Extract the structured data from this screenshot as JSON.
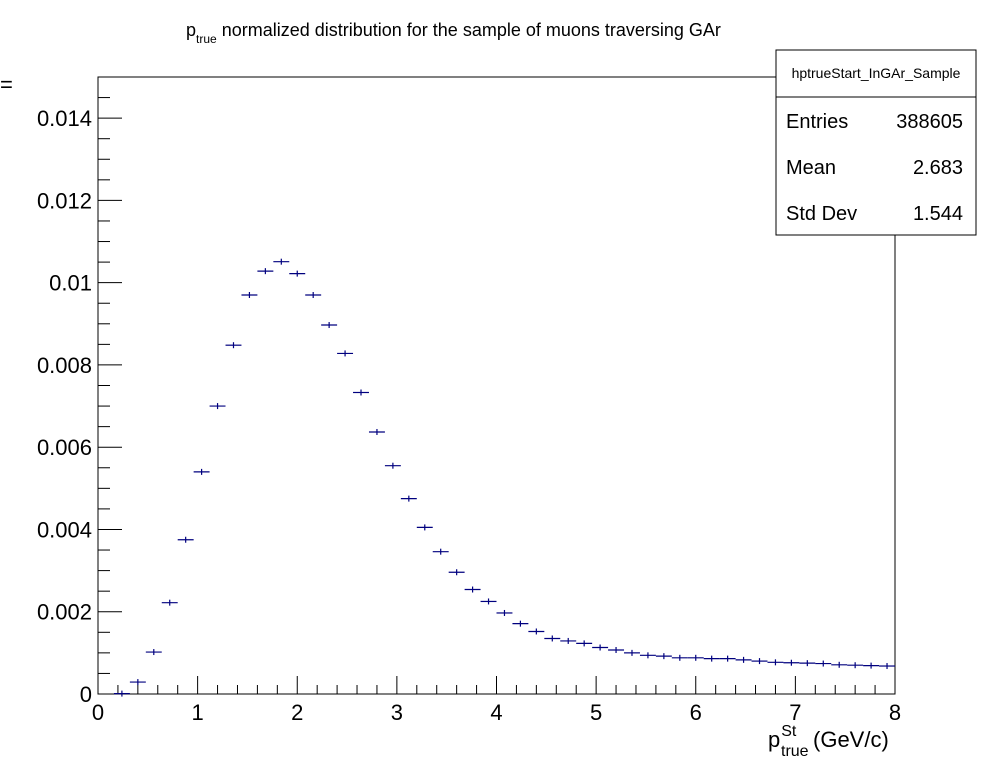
{
  "chart_data": {
    "type": "scatter",
    "title": {
      "symbol": "p",
      "subscript": "true",
      "text": " normalized distribution for the sample of muons traversing GAr"
    },
    "xlabel": {
      "symbol": "p",
      "superscript": "St",
      "subscript": "true",
      "unit": "(GeV/c)"
    },
    "ylabel_fragment": "=",
    "xlim": [
      0,
      8
    ],
    "ylim": [
      0,
      0.015
    ],
    "xticks": [
      0,
      1,
      2,
      3,
      4,
      5,
      6,
      7,
      8
    ],
    "xtick_labels": [
      "0",
      "1",
      "2",
      "3",
      "4",
      "5",
      "6",
      "7",
      "8"
    ],
    "yticks": [
      0,
      0.002,
      0.004,
      0.006,
      0.008,
      0.01,
      0.012,
      0.014
    ],
    "ytick_labels": [
      "0",
      "0.002",
      "0.004",
      "0.006",
      "0.008",
      "0.01",
      "0.012",
      "0.014"
    ],
    "bin_width": 0.16,
    "x": [
      0.24,
      0.4,
      0.56,
      0.72,
      0.88,
      1.04,
      1.2,
      1.36,
      1.52,
      1.68,
      1.84,
      2.0,
      2.16,
      2.32,
      2.48,
      2.64,
      2.8,
      2.96,
      3.12,
      3.28,
      3.44,
      3.6,
      3.76,
      3.92,
      4.08,
      4.24,
      4.4,
      4.56,
      4.72,
      4.88,
      5.04,
      5.2,
      5.36,
      5.52,
      5.68,
      5.84,
      6.0,
      6.16,
      6.32,
      6.48,
      6.64,
      6.8,
      6.96,
      7.12,
      7.28,
      7.44,
      7.6,
      7.76,
      7.92
    ],
    "values": [
      1e-05,
      0.00029,
      0.00102,
      0.00222,
      0.00375,
      0.0054,
      0.007,
      0.00848,
      0.0097,
      0.01028,
      0.01051,
      0.01022,
      0.0097,
      0.00897,
      0.00828,
      0.00733,
      0.00637,
      0.00555,
      0.00475,
      0.00405,
      0.00346,
      0.00296,
      0.00254,
      0.00225,
      0.00197,
      0.00171,
      0.00152,
      0.00135,
      0.00129,
      0.00123,
      0.00113,
      0.00107,
      0.001,
      0.00094,
      0.00092,
      0.00088,
      0.00088,
      0.00086,
      0.00086,
      0.00083,
      0.0008,
      0.00077,
      0.00076,
      0.00075,
      0.00074,
      0.00071,
      0.0007,
      0.00069,
      0.00068
    ],
    "marker_color": "#00007f",
    "stats_box": {
      "name": "hptrueStart_InGAr_Sample",
      "rows": [
        {
          "label": "Entries",
          "value": "388605"
        },
        {
          "label": "Mean",
          "value": "2.683"
        },
        {
          "label": "Std Dev",
          "value": "1.544"
        }
      ]
    }
  }
}
